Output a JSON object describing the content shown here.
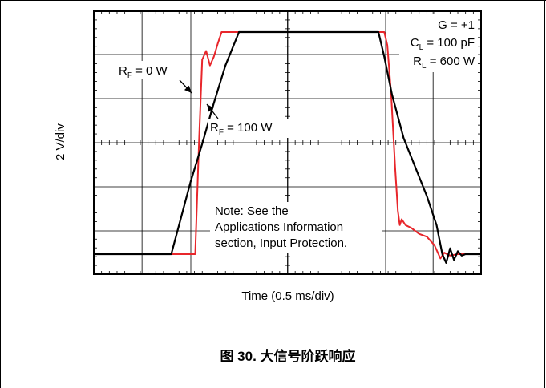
{
  "chart_data": {
    "type": "line",
    "xlabel": "Time (0.5 ms/div)",
    "ylabel": "2 V/div",
    "xlim": [
      0,
      10
    ],
    "ylim": [
      0,
      8
    ],
    "grid": true,
    "series": [
      {
        "name": "RF = 0 W",
        "color": "#e8262b",
        "x": [
          0,
          2.5,
          2.62,
          2.72,
          2.8,
          2.9,
          3.0,
          3.1,
          3.2,
          3.3,
          3.4,
          3.5,
          7.5,
          7.58,
          7.68,
          7.78,
          7.85,
          7.9,
          7.95,
          8.05,
          8.2,
          8.4,
          8.6,
          8.8,
          8.95,
          9.05,
          9.2,
          9.4,
          10
        ],
        "y": [
          0,
          0,
          0,
          4.0,
          6.7,
          7.0,
          6.5,
          6.8,
          7.25,
          7.65,
          7.65,
          7.65,
          7.65,
          7.2,
          5.5,
          3.0,
          1.5,
          1.0,
          1.2,
          1.0,
          0.9,
          0.7,
          0.6,
          0.3,
          -0.15,
          0.05,
          -0.05,
          0.0,
          0.0
        ]
      },
      {
        "name": "RF = 100 W",
        "color": "#000000",
        "x": [
          0,
          2.0,
          2.2,
          2.5,
          2.8,
          3.1,
          3.4,
          3.75,
          7.35,
          7.5,
          7.7,
          8.0,
          8.3,
          8.6,
          8.85,
          9.0,
          9.1,
          9.2,
          9.3,
          9.4,
          9.5,
          9.6,
          10
        ],
        "y": [
          0,
          0,
          1.0,
          2.5,
          3.8,
          5.2,
          6.5,
          7.65,
          7.65,
          6.8,
          5.5,
          4.0,
          3.0,
          2.0,
          1.0,
          0.0,
          -0.3,
          0.2,
          -0.2,
          0.1,
          -0.05,
          0.0,
          0.0
        ]
      }
    ],
    "annotations": {
      "gain": "G = +1",
      "cl_main": "C",
      "cl_sub": "L",
      "cl_rest": " = 100 pF",
      "rl_main": "R",
      "rl_sub": "L",
      "rl_rest": " = 600 W",
      "rf0_main": "R",
      "rf0_sub": "F",
      "rf0_rest": " = 0 W",
      "rf100_main": "R",
      "rf100_sub": "F",
      "rf100_rest": " = 100 W",
      "note_line1": "Note: See the",
      "note_line2": "Applications Information",
      "note_line3": "section, Input Protection."
    }
  },
  "caption": "图 30. 大信号阶跃响应"
}
